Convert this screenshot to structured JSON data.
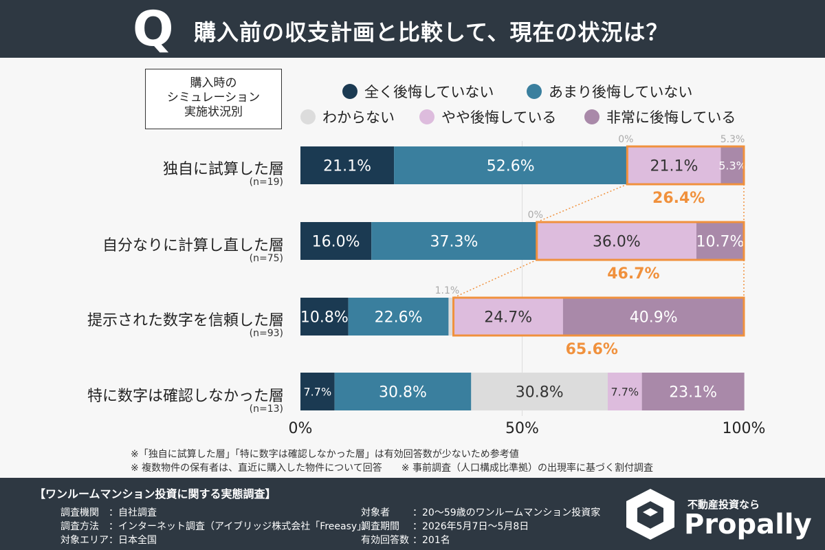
{
  "header": {
    "q_mark": "Q",
    "title": "購入前の収支計画と比較して、現在の状況は？"
  },
  "segment_box": {
    "line1": "購入時の",
    "line2": "シミュレーション",
    "line3": "実施状況別"
  },
  "colors": {
    "header_bg": "#2e3842",
    "s1": "#1b3a52",
    "s2": "#3a7f9e",
    "s3": "#dcdcdc",
    "s4": "#ddbcdd",
    "s5": "#a989a9",
    "highlight": "#f0913d"
  },
  "chart_data": {
    "type": "bar",
    "orientation": "horizontal-stacked-100",
    "categories": [
      "独自に試算した層",
      "自分なりに計算し直した層",
      "提示された数字を信頼した層",
      "特に数字は確認しなかった層"
    ],
    "n_labels": [
      "(n=19)",
      "(n=75)",
      "(n=93)",
      "(n=13)"
    ],
    "series": [
      {
        "name": "全く後悔していない",
        "values": [
          21.1,
          16.0,
          10.8,
          7.7
        ],
        "labels": [
          "21.1%",
          "16.0%",
          "10.8%",
          "7.7%"
        ]
      },
      {
        "name": "あまり後悔していない",
        "values": [
          52.6,
          37.3,
          22.6,
          30.8
        ],
        "labels": [
          "52.6%",
          "37.3%",
          "22.6%",
          "30.8%"
        ]
      },
      {
        "name": "わからない",
        "values": [
          0,
          0,
          1.1,
          30.8
        ],
        "labels": [
          "0%",
          "0%",
          "1.1%",
          "30.8%"
        ]
      },
      {
        "name": "やや後悔している",
        "values": [
          21.1,
          36.0,
          24.7,
          7.7
        ],
        "labels": [
          "21.1%",
          "36.0%",
          "24.7%",
          "7.7%"
        ]
      },
      {
        "name": "非常に後悔している",
        "values": [
          5.3,
          10.7,
          40.9,
          23.1
        ],
        "labels": [
          "5.3%",
          "10.7%",
          "40.9%",
          "23.1%"
        ]
      }
    ],
    "highlight_totals": [
      "26.4%",
      "46.7%",
      "65.6%"
    ],
    "x_ticks": [
      "0%",
      "50%",
      "100%"
    ],
    "xlim": [
      0,
      100
    ],
    "legend_position": "top"
  },
  "notes": {
    "note1": "※「独自に試算した層」「特に数字は確認しなかった層」は有効回答数が少ないため参考値",
    "note2": "※ 複数物件の保有者は、直近に購入した物件について回答　　※ 事前調査（人口構成比準拠）の出現率に基づく割付調査"
  },
  "footer": {
    "survey_title": "【ワンルームマンション投資に関する実態調査】",
    "left": [
      {
        "key": "調査機関",
        "value": "：自社調査"
      },
      {
        "key": "調査方法",
        "value": "：インターネット調査（アイブリッジ株式会社「Freeasy」）"
      },
      {
        "key": "対象エリア",
        "value": "：日本全国"
      }
    ],
    "right": [
      {
        "key": "対象者",
        "value": "：20〜59歳のワンルームマンション投資家"
      },
      {
        "key": "調査期間",
        "value": "：2026年5月7日〜5月8日"
      },
      {
        "key": "有効回答数",
        "value": "：201名"
      }
    ],
    "brand_tag": "不動産投資なら",
    "brand_name": "Propally"
  }
}
